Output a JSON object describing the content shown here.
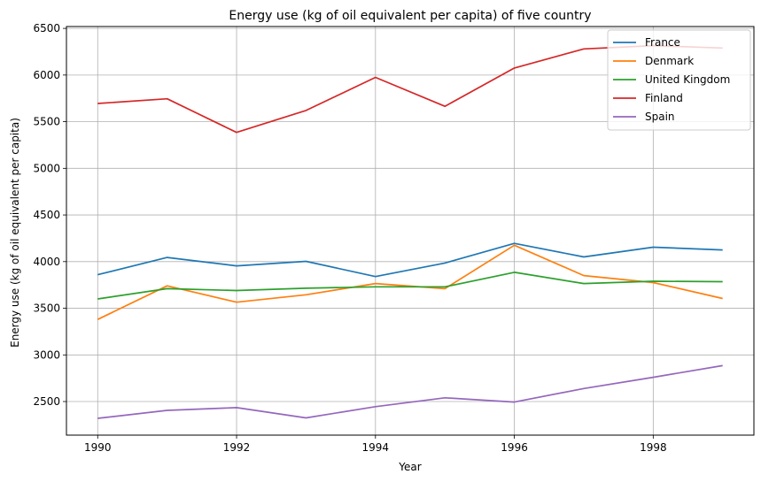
{
  "chart_data": {
    "type": "line",
    "title": "Energy use (kg of oil equivalent per capita) of five country",
    "xlabel": "Year",
    "ylabel": "Energy use (kg of oil equivalent per capita)",
    "x": [
      1990,
      1991,
      1992,
      1993,
      1994,
      1995,
      1996,
      1997,
      1998,
      1999
    ],
    "xticks": [
      1990,
      1992,
      1994,
      1996,
      1998
    ],
    "yticks": [
      2500,
      3000,
      3500,
      4000,
      4500,
      5000,
      5500,
      6000,
      6500
    ],
    "xlim": [
      1989.55,
      1999.45
    ],
    "ylim": [
      2140,
      6520
    ],
    "grid": true,
    "legend_position": "top-right",
    "series": [
      {
        "name": "France",
        "color": "#1f77b4",
        "values": [
          3860,
          4045,
          3955,
          4003,
          3840,
          3985,
          4195,
          4050,
          4155,
          4125
        ]
      },
      {
        "name": "Denmark",
        "color": "#ff7f0e",
        "values": [
          3380,
          3740,
          3565,
          3645,
          3765,
          3710,
          4175,
          3850,
          3775,
          3605
        ]
      },
      {
        "name": "United Kingdom",
        "color": "#2ca02c",
        "values": [
          3600,
          3710,
          3690,
          3715,
          3730,
          3730,
          3885,
          3765,
          3790,
          3785
        ]
      },
      {
        "name": "Finland",
        "color": "#d62728",
        "values": [
          5695,
          5745,
          5385,
          5620,
          5975,
          5665,
          6075,
          6280,
          6315,
          6290
        ]
      },
      {
        "name": "Spain",
        "color": "#9467bd",
        "values": [
          2320,
          2405,
          2435,
          2325,
          2445,
          2540,
          2495,
          2640,
          2760,
          2885
        ]
      }
    ]
  }
}
